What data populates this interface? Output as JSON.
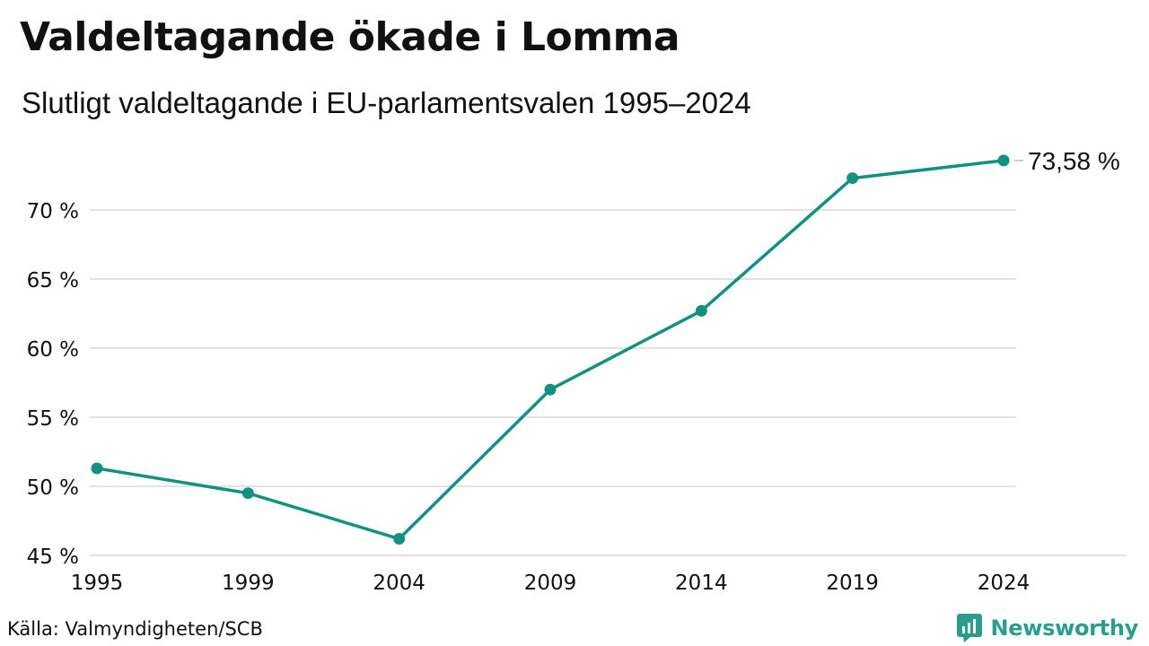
{
  "header": {
    "title": "Valdeltagande ökade i Lomma",
    "subtitle": "Slutligt valdeltagande i EU-parlamentsvalen 1995–2024"
  },
  "footer": {
    "source": "Källa: Valmyndigheten/SCB",
    "brand": "Newsworthy",
    "brand_icon": "newsworthy-logo-icon"
  },
  "colors": {
    "line": "#13917f",
    "grid": "#e2e2e2",
    "text": "#111111",
    "brand": "#2a9d8f"
  },
  "chart_data": {
    "type": "line",
    "title": "Valdeltagande ökade i Lomma",
    "subtitle": "Slutligt valdeltagande i EU-parlamentsvalen 1995–2024",
    "xlabel": "",
    "ylabel": "",
    "categories": [
      "1995",
      "1999",
      "2004",
      "2009",
      "2014",
      "2019",
      "2024"
    ],
    "series": [
      {
        "values": [
          51.3,
          49.5,
          46.2,
          57.0,
          62.7,
          72.3,
          73.58
        ]
      }
    ],
    "ylim": [
      45,
      75
    ],
    "yticks": [
      45,
      50,
      55,
      60,
      65,
      70
    ],
    "ytick_labels": [
      "45 %",
      "50 %",
      "55 %",
      "60 %",
      "65 %",
      "70 %"
    ],
    "end_label": "73,58 %",
    "grid": true,
    "legend": "none"
  }
}
